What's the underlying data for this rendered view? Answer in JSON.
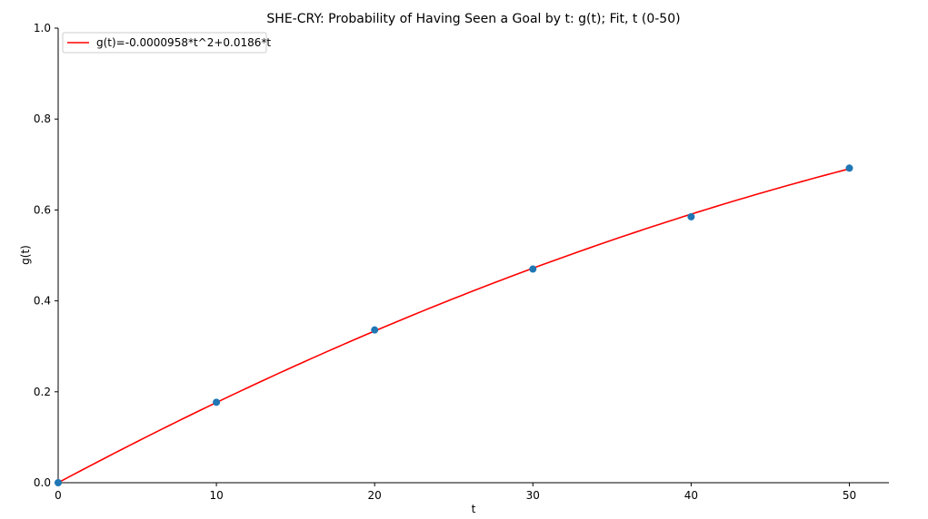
{
  "chart_data": {
    "type": "scatter",
    "title": "SHE-CRY: Probability of Having Seen a Goal by t: g(t); Fit, t (0-50)",
    "xlabel": "t",
    "ylabel": "g(t)",
    "xlim": [
      0,
      52.5
    ],
    "ylim": [
      0,
      1.0
    ],
    "xticks": [
      0,
      10,
      20,
      30,
      40,
      50
    ],
    "yticks": [
      0.0,
      0.2,
      0.4,
      0.6,
      0.8,
      1.0
    ],
    "xtick_labels": [
      "0",
      "10",
      "20",
      "30",
      "40",
      "50"
    ],
    "ytick_labels": [
      "0.0",
      "0.2",
      "0.4",
      "0.6",
      "0.8",
      "1.0"
    ],
    "grid": false,
    "legend_position": "top-left",
    "points": {
      "x": [
        0,
        10,
        20,
        30,
        40,
        50
      ],
      "y": [
        0.0,
        0.177,
        0.336,
        0.47,
        0.585,
        0.692
      ],
      "color": "#1f77b4"
    },
    "fit": {
      "label": "g(t)=-0.0000958*t^2+0.0186*t",
      "a": -9.58e-05,
      "b": 0.0186,
      "x_range": [
        0,
        50
      ],
      "color": "#ff0000"
    }
  }
}
